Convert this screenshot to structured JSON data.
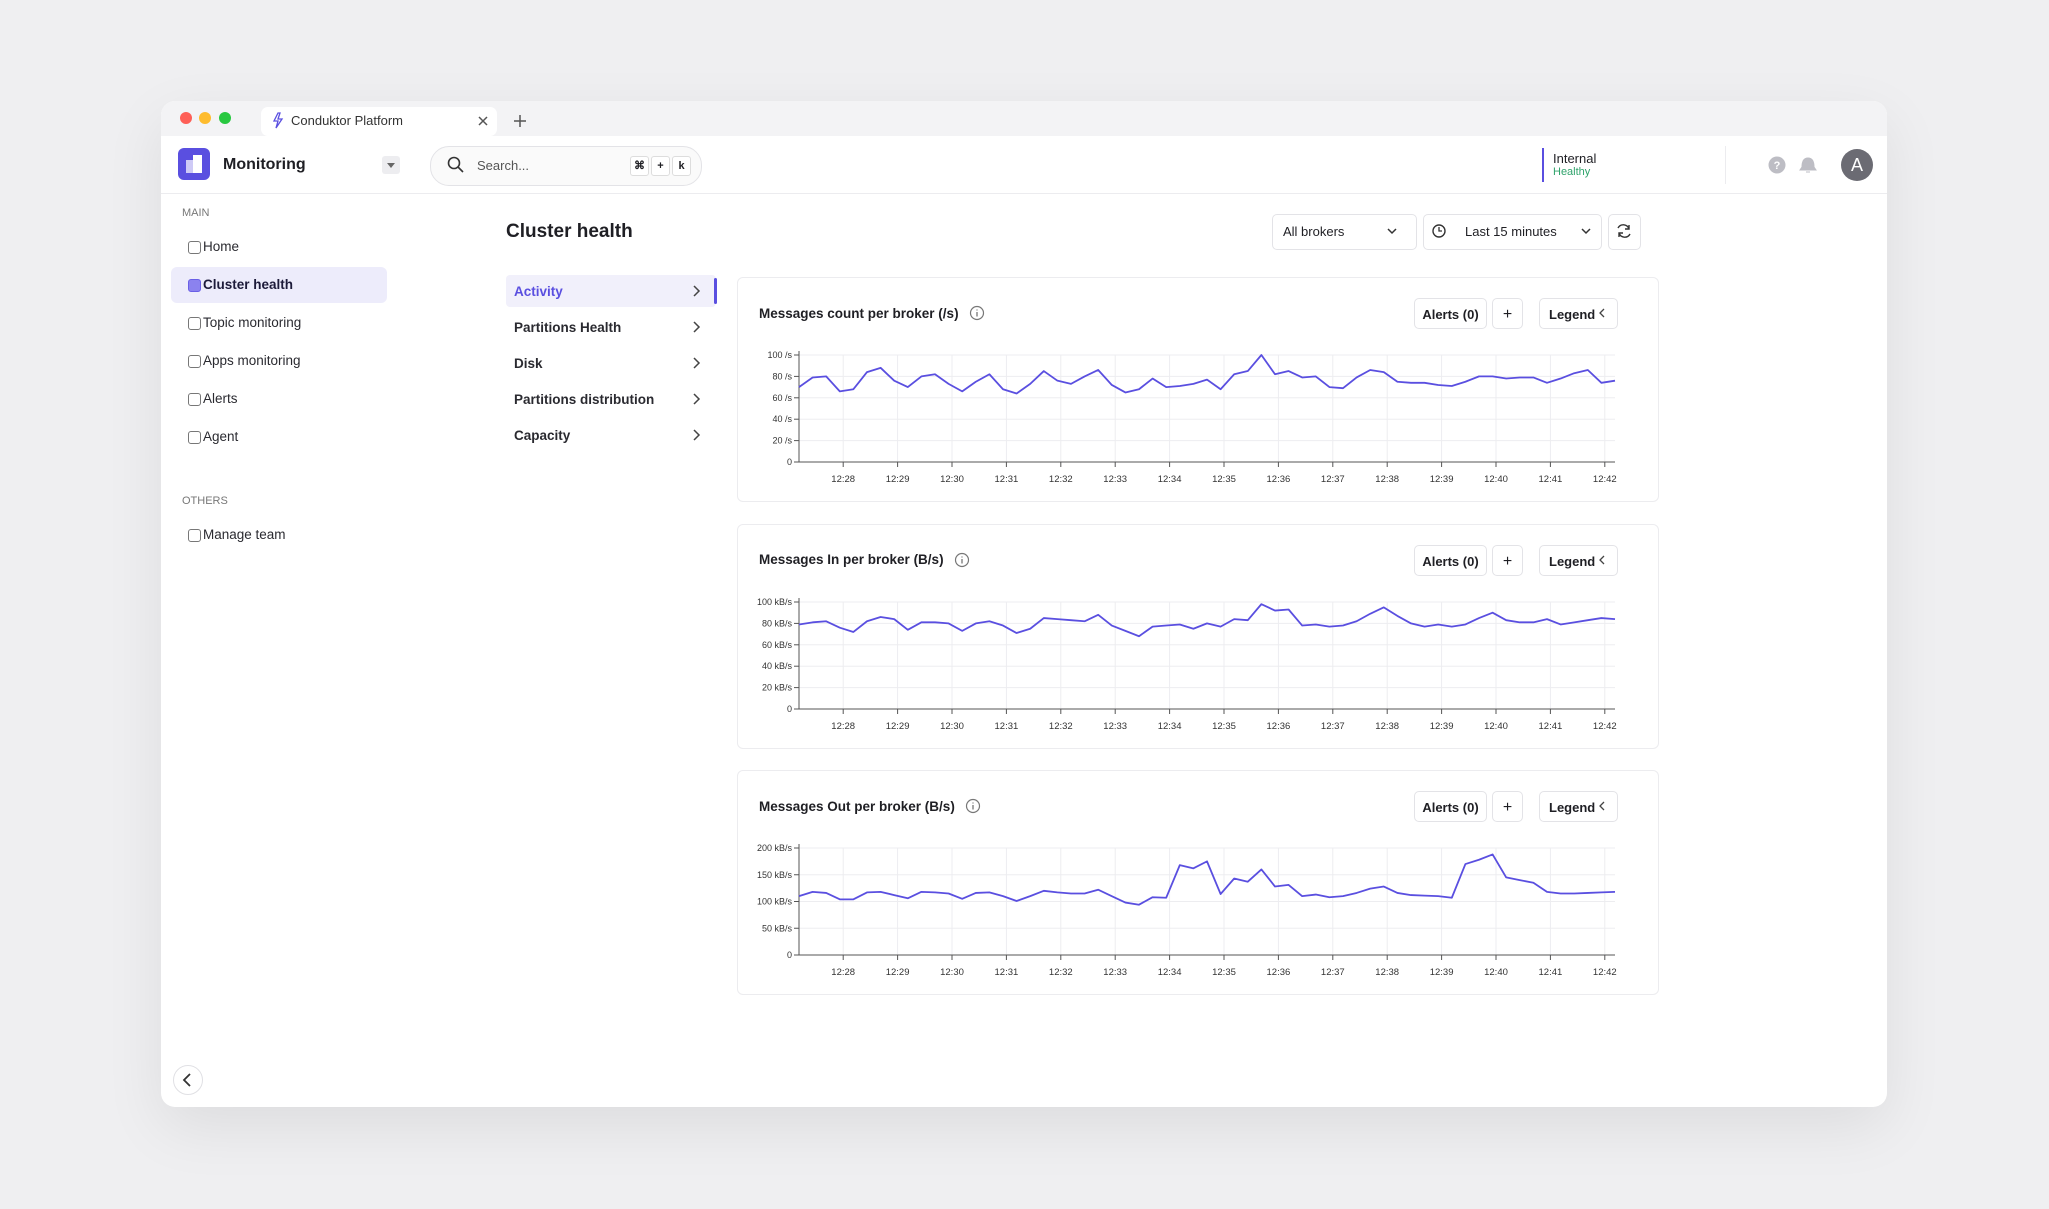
{
  "browser": {
    "tab": "Conduktor Platform"
  },
  "header": {
    "app": "Monitoring",
    "search": "Search...",
    "shortcut": [
      "⌘",
      "+",
      "k"
    ],
    "cluster": "Internal",
    "status": "Healthy",
    "avatar": "A"
  },
  "sidebar": {
    "sections": [
      {
        "title": "MAIN",
        "items": [
          "Home",
          "Cluster health",
          "Topic monitoring",
          "Apps monitoring",
          "Alerts",
          "Agent"
        ],
        "active": 1
      },
      {
        "title": "OTHERS",
        "items": [
          "Manage team"
        ]
      }
    ]
  },
  "page": {
    "title": "Cluster health",
    "brokers": "All brokers",
    "time_range": "Last 15 minutes",
    "tabs": [
      "Activity",
      "Partitions Health",
      "Disk",
      "Partitions distribution",
      "Capacity"
    ],
    "active_tab": 0
  },
  "chart_data": [
    {
      "type": "line",
      "title": "Messages count per broker (/s)",
      "alerts": "Alerts (0)",
      "add": "+",
      "legend": "Legend",
      "grid": true,
      "xlim": [
        0,
        60
      ],
      "xticks": [
        {
          "value": 3.25,
          "label": "12:28"
        },
        {
          "value": 7.25,
          "label": "12:29"
        },
        {
          "value": 11.25,
          "label": "12:30"
        },
        {
          "value": 15.25,
          "label": "12:31"
        },
        {
          "value": 19.25,
          "label": "12:32"
        },
        {
          "value": 23.25,
          "label": "12:33"
        },
        {
          "value": 27.25,
          "label": "12:34"
        },
        {
          "value": 31.25,
          "label": "12:35"
        },
        {
          "value": 35.25,
          "label": "12:36"
        },
        {
          "value": 39.25,
          "label": "12:37"
        },
        {
          "value": 43.25,
          "label": "12:38"
        },
        {
          "value": 47.25,
          "label": "12:39"
        },
        {
          "value": 51.25,
          "label": "12:40"
        },
        {
          "value": 55.25,
          "label": "12:41"
        },
        {
          "value": 59.25,
          "label": "12:42"
        }
      ],
      "ylim": [
        0,
        100
      ],
      "yticks": [
        0,
        {
          "value": 20,
          "label": "20 /s"
        },
        {
          "value": 40,
          "label": "40 /s"
        },
        {
          "value": 60,
          "label": "60 /s"
        },
        {
          "value": 80,
          "label": "80 /s"
        },
        {
          "value": 100,
          "label": "100 /s"
        }
      ],
      "series": [
        {
          "color": "#5a4fe0",
          "values": [
            70,
            79,
            80,
            66,
            68,
            84,
            88,
            76,
            70,
            80,
            82,
            73,
            66,
            75,
            82,
            68,
            64,
            73,
            85,
            76,
            73,
            80,
            86,
            72,
            65,
            68,
            78,
            70,
            71,
            73,
            77,
            68,
            82,
            85,
            100,
            82,
            85,
            79,
            80,
            70,
            69,
            79,
            86,
            84,
            75,
            74,
            74,
            72,
            71,
            75,
            80,
            80,
            78,
            79,
            79,
            74,
            78,
            83,
            86,
            74,
            76
          ]
        }
      ]
    },
    {
      "type": "line",
      "title": "Messages In per broker (B/s)",
      "alerts": "Alerts (0)",
      "add": "+",
      "legend": "Legend",
      "grid": true,
      "xlim": [
        0,
        60
      ],
      "xticks": [
        {
          "value": 3.25,
          "label": "12:28"
        },
        {
          "value": 7.25,
          "label": "12:29"
        },
        {
          "value": 11.25,
          "label": "12:30"
        },
        {
          "value": 15.25,
          "label": "12:31"
        },
        {
          "value": 19.25,
          "label": "12:32"
        },
        {
          "value": 23.25,
          "label": "12:33"
        },
        {
          "value": 27.25,
          "label": "12:34"
        },
        {
          "value": 31.25,
          "label": "12:35"
        },
        {
          "value": 35.25,
          "label": "12:36"
        },
        {
          "value": 39.25,
          "label": "12:37"
        },
        {
          "value": 43.25,
          "label": "12:38"
        },
        {
          "value": 47.25,
          "label": "12:39"
        },
        {
          "value": 51.25,
          "label": "12:40"
        },
        {
          "value": 55.25,
          "label": "12:41"
        },
        {
          "value": 59.25,
          "label": "12:42"
        }
      ],
      "ylim": [
        0,
        100
      ],
      "yticks": [
        0,
        {
          "value": 20,
          "label": "20 kB/s"
        },
        {
          "value": 40,
          "label": "40 kB/s"
        },
        {
          "value": 60,
          "label": "60 kB/s"
        },
        {
          "value": 80,
          "label": "80 kB/s"
        },
        {
          "value": 100,
          "label": "100 kB/s"
        }
      ],
      "series": [
        {
          "color": "#5a4fe0",
          "values": [
            79,
            81,
            82,
            76,
            72,
            82,
            86,
            84,
            74,
            81,
            81,
            80,
            73,
            80,
            82,
            78,
            71,
            75,
            85,
            84,
            83,
            82,
            88,
            78,
            73,
            68,
            77,
            78,
            79,
            75,
            80,
            77,
            84,
            83,
            98,
            92,
            93,
            78,
            79,
            77,
            78,
            82,
            89,
            95,
            87,
            80,
            77,
            79,
            77,
            79,
            85,
            90,
            83,
            81,
            81,
            84,
            79,
            81,
            83,
            85,
            84
          ]
        }
      ]
    },
    {
      "type": "line",
      "title": "Messages Out per broker (B/s)",
      "alerts": "Alerts (0)",
      "add": "+",
      "legend": "Legend",
      "grid": true,
      "xlim": [
        0,
        60
      ],
      "xticks": [
        {
          "value": 3.25,
          "label": "12:28"
        },
        {
          "value": 7.25,
          "label": "12:29"
        },
        {
          "value": 11.25,
          "label": "12:30"
        },
        {
          "value": 15.25,
          "label": "12:31"
        },
        {
          "value": 19.25,
          "label": "12:32"
        },
        {
          "value": 23.25,
          "label": "12:33"
        },
        {
          "value": 27.25,
          "label": "12:34"
        },
        {
          "value": 31.25,
          "label": "12:35"
        },
        {
          "value": 35.25,
          "label": "12:36"
        },
        {
          "value": 39.25,
          "label": "12:37"
        },
        {
          "value": 43.25,
          "label": "12:38"
        },
        {
          "value": 47.25,
          "label": "12:39"
        },
        {
          "value": 51.25,
          "label": "12:40"
        },
        {
          "value": 55.25,
          "label": "12:41"
        },
        {
          "value": 59.25,
          "label": "12:42"
        }
      ],
      "ylim": [
        0,
        200
      ],
      "yticks": [
        0,
        {
          "value": 50,
          "label": "50 kB/s"
        },
        {
          "value": 100,
          "label": "100 kB/s"
        },
        {
          "value": 150,
          "label": "150 kB/s"
        },
        {
          "value": 200,
          "label": "200 kB/s"
        }
      ],
      "series": [
        {
          "color": "#5a4fe0",
          "values": [
            110,
            118,
            116,
            104,
            104,
            117,
            118,
            112,
            106,
            118,
            117,
            115,
            105,
            116,
            117,
            110,
            101,
            110,
            120,
            117,
            115,
            115,
            122,
            110,
            98,
            94,
            108,
            107,
            168,
            162,
            175,
            114,
            143,
            137,
            160,
            128,
            131,
            110,
            113,
            108,
            110,
            116,
            124,
            128,
            116,
            112,
            111,
            110,
            107,
            170,
            178,
            188,
            145,
            140,
            135,
            118,
            115,
            115,
            116,
            117,
            118
          ]
        }
      ]
    }
  ]
}
